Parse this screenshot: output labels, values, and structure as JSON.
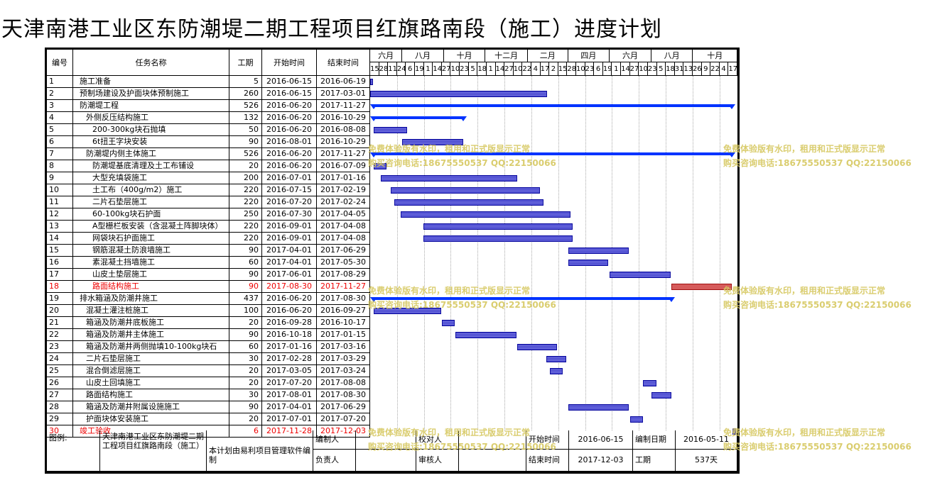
{
  "title": "天津南港工业区东防潮堤二期工程项目红旗路南段（施工）进度计划",
  "headers": {
    "id": "编号",
    "name": "任务名称",
    "dur": "工期",
    "start": "开始时间",
    "end": "结束时间"
  },
  "months": [
    "六月",
    "八月",
    "十月",
    "十二月",
    "二月",
    "四月",
    "六月",
    "八月",
    "十月"
  ],
  "days": [
    "15",
    "28",
    "11",
    "24",
    "6",
    "19",
    "1",
    "14",
    "27",
    "10",
    "23",
    "5",
    "18",
    "1",
    "14",
    "27",
    "10",
    "22",
    "4",
    "17",
    "2",
    "15",
    "28",
    "10",
    "23",
    "6",
    "19",
    "1",
    "14",
    "27",
    "10",
    "23",
    "5",
    "18",
    "31",
    "13",
    "26",
    "9",
    "22",
    "4",
    "17"
  ],
  "tasks": [
    {
      "id": "1",
      "name": "施工准备",
      "dur": "5",
      "start": "2016-06-15",
      "end": "2016-06-19",
      "indent": 1,
      "type": "task"
    },
    {
      "id": "2",
      "name": "预制场建设及护面块体预制施工",
      "dur": "260",
      "start": "2016-06-15",
      "end": "2017-03-01",
      "indent": 1,
      "type": "task"
    },
    {
      "id": "3",
      "name": "防潮堤工程",
      "dur": "526",
      "start": "2016-06-20",
      "end": "2017-11-27",
      "indent": 1,
      "type": "summary"
    },
    {
      "id": "4",
      "name": "外侧反压结构施工",
      "dur": "132",
      "start": "2016-06-20",
      "end": "2016-10-29",
      "indent": 2,
      "type": "summary"
    },
    {
      "id": "5",
      "name": "200-300kg块石抛填",
      "dur": "50",
      "start": "2016-06-20",
      "end": "2016-08-08",
      "indent": 3,
      "type": "task"
    },
    {
      "id": "6",
      "name": "6t扭王字块安装",
      "dur": "90",
      "start": "2016-08-01",
      "end": "2016-10-29",
      "indent": 3,
      "type": "task"
    },
    {
      "id": "7",
      "name": "防潮堤内侧主体施工",
      "dur": "526",
      "start": "2016-06-20",
      "end": "2017-11-27",
      "indent": 2,
      "type": "summary"
    },
    {
      "id": "8",
      "name": "防潮堤基底清理及土工布铺设",
      "dur": "20",
      "start": "2016-06-20",
      "end": "2016-07-09",
      "indent": 3,
      "type": "task"
    },
    {
      "id": "9",
      "name": "大型充填袋施工",
      "dur": "200",
      "start": "2016-07-01",
      "end": "2017-01-16",
      "indent": 3,
      "type": "task"
    },
    {
      "id": "10",
      "name": "土工布（400g/m2）施工",
      "dur": "220",
      "start": "2016-07-15",
      "end": "2017-02-19",
      "indent": 3,
      "type": "task"
    },
    {
      "id": "11",
      "name": "二片石垫层施工",
      "dur": "220",
      "start": "2016-07-20",
      "end": "2017-02-24",
      "indent": 3,
      "type": "task"
    },
    {
      "id": "12",
      "name": "60-100kg块石护面",
      "dur": "250",
      "start": "2016-07-30",
      "end": "2017-04-05",
      "indent": 3,
      "type": "task"
    },
    {
      "id": "13",
      "name": "A型栅栏板安装（含混凝土阵脚块体）",
      "dur": "220",
      "start": "2016-09-01",
      "end": "2017-04-08",
      "indent": 3,
      "type": "task"
    },
    {
      "id": "14",
      "name": "网袋块石护面施工",
      "dur": "220",
      "start": "2016-09-01",
      "end": "2017-04-08",
      "indent": 3,
      "type": "task"
    },
    {
      "id": "15",
      "name": "钢筋混凝土防浪墙施工",
      "dur": "90",
      "start": "2017-04-01",
      "end": "2017-06-29",
      "indent": 3,
      "type": "task"
    },
    {
      "id": "16",
      "name": "素混凝土挡墙施工",
      "dur": "60",
      "start": "2017-04-01",
      "end": "2017-05-30",
      "indent": 3,
      "type": "task"
    },
    {
      "id": "17",
      "name": "山皮土垫层施工",
      "dur": "90",
      "start": "2017-06-01",
      "end": "2017-08-29",
      "indent": 3,
      "type": "task"
    },
    {
      "id": "18",
      "name": "路面结构施工",
      "dur": "90",
      "start": "2017-08-30",
      "end": "2017-11-27",
      "indent": 3,
      "type": "critical",
      "red": true
    },
    {
      "id": "19",
      "name": "排水箱涵及防潮井施工",
      "dur": "437",
      "start": "2016-06-20",
      "end": "2017-08-30",
      "indent": 1,
      "type": "summary"
    },
    {
      "id": "20",
      "name": "混凝土灌注桩施工",
      "dur": "100",
      "start": "2016-06-20",
      "end": "2016-09-27",
      "indent": 2,
      "type": "task"
    },
    {
      "id": "21",
      "name": "箱涵及防潮井底板施工",
      "dur": "20",
      "start": "2016-09-28",
      "end": "2016-10-17",
      "indent": 2,
      "type": "task"
    },
    {
      "id": "22",
      "name": "箱涵及防潮井主体施工",
      "dur": "90",
      "start": "2016-10-18",
      "end": "2017-01-15",
      "indent": 2,
      "type": "task"
    },
    {
      "id": "23",
      "name": "箱涵及防潮井两侧抛填10-100kg块石",
      "dur": "60",
      "start": "2017-01-16",
      "end": "2017-03-16",
      "indent": 2,
      "type": "task"
    },
    {
      "id": "24",
      "name": "二片石垫层施工",
      "dur": "30",
      "start": "2017-02-28",
      "end": "2017-03-29",
      "indent": 2,
      "type": "task"
    },
    {
      "id": "25",
      "name": "混合倒滤层施工",
      "dur": "20",
      "start": "2017-03-05",
      "end": "2017-03-24",
      "indent": 2,
      "type": "task"
    },
    {
      "id": "26",
      "name": "山皮土回填施工",
      "dur": "20",
      "start": "2017-07-20",
      "end": "2017-08-08",
      "indent": 2,
      "type": "task"
    },
    {
      "id": "27",
      "name": "路面结构施工",
      "dur": "30",
      "start": "2017-08-01",
      "end": "2017-08-30",
      "indent": 2,
      "type": "task"
    },
    {
      "id": "28",
      "name": "箱涵及防潮井附属设施施工",
      "dur": "90",
      "start": "2017-04-01",
      "end": "2017-06-29",
      "indent": 2,
      "type": "task"
    },
    {
      "id": "29",
      "name": "护面块体安装施工",
      "dur": "20",
      "start": "2017-07-01",
      "end": "2017-07-20",
      "indent": 2,
      "type": "task"
    },
    {
      "id": "30",
      "name": "竣工验收",
      "dur": "6",
      "start": "2017-11-28",
      "end": "2017-12-03",
      "indent": 1,
      "type": "task",
      "red": true
    }
  ],
  "footer": {
    "legend_label": "图例:",
    "project_name": "天津南港工业区东防潮堤二期工程项目红旗路南段（施工）",
    "software_note": "本计划由易利项目管理软件编制",
    "compiler_label": "编制人",
    "reviewer_label": "校对人",
    "start_label": "开始时间",
    "start_value": "2016-06-15",
    "date_label": "编制日期",
    "date_value": "2016-05-11",
    "owner_label": "负责人",
    "auditor_label": "审核人",
    "end_label": "结束时间",
    "end_value": "2017-12-03",
    "duration_label": "工期",
    "duration_value": "537天"
  },
  "watermark": {
    "line1": "免费体验版有水印，租用和正式版显示正常",
    "line2": "购买咨询电话:18675550537 QQ:22150066"
  },
  "colors": {
    "bar": "#5b5bd6",
    "summary": "#0033ff",
    "critical": "#d65b5b",
    "watermark": "#d6c860"
  }
}
